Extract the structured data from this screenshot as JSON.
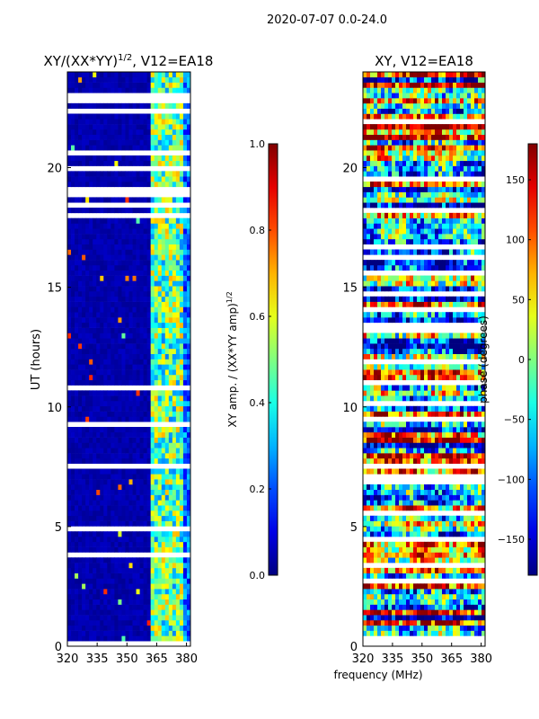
{
  "suptitle": "2020-07-07 0.0-24.0",
  "xlabel": "frequency (MHz)",
  "colors": {
    "background": "#ffffff",
    "jet_dark": "#00007f",
    "axis": "#000000"
  },
  "chart_data": [
    {
      "type": "heatmap",
      "title_prefix": "XY/(XX*YY)",
      "title_sup": "1/2",
      "title_suffix": ", V12=EA18",
      "xlim": [
        320,
        382
      ],
      "ylim": [
        0,
        24
      ],
      "xticks": [
        320,
        335,
        350,
        365,
        380
      ],
      "yticks": [
        0,
        5,
        10,
        15,
        20
      ],
      "ylabel": "UT (hours)",
      "colorbar": {
        "range": [
          0.0,
          1.0
        ],
        "ticks": [
          "0.0",
          "0.2",
          "0.4",
          "0.6",
          "0.8",
          "1.0"
        ],
        "label_prefix": "XY amp. / (XX*YY amp)",
        "label_sup": "1/2"
      },
      "description": "Normalized cross-hand amplitude; near 0 below ~362 MHz, elevated 0.3-0.7 between ~362 and ~378 MHz"
    },
    {
      "type": "heatmap",
      "title": "XY, V12=EA18",
      "xlim": [
        320,
        382
      ],
      "ylim": [
        0,
        24
      ],
      "xticks": [
        320,
        335,
        350,
        365,
        380
      ],
      "yticks": [
        0,
        5,
        10,
        15,
        20
      ],
      "colorbar": {
        "range": [
          -180,
          180
        ],
        "ticks": [
          "-150",
          "-100",
          "-50",
          "0",
          "50",
          "100",
          "150"
        ],
        "label": "phase (degrees)"
      },
      "description": "Cross-hand phase in degrees, varying across full -180 to 180 range"
    }
  ]
}
